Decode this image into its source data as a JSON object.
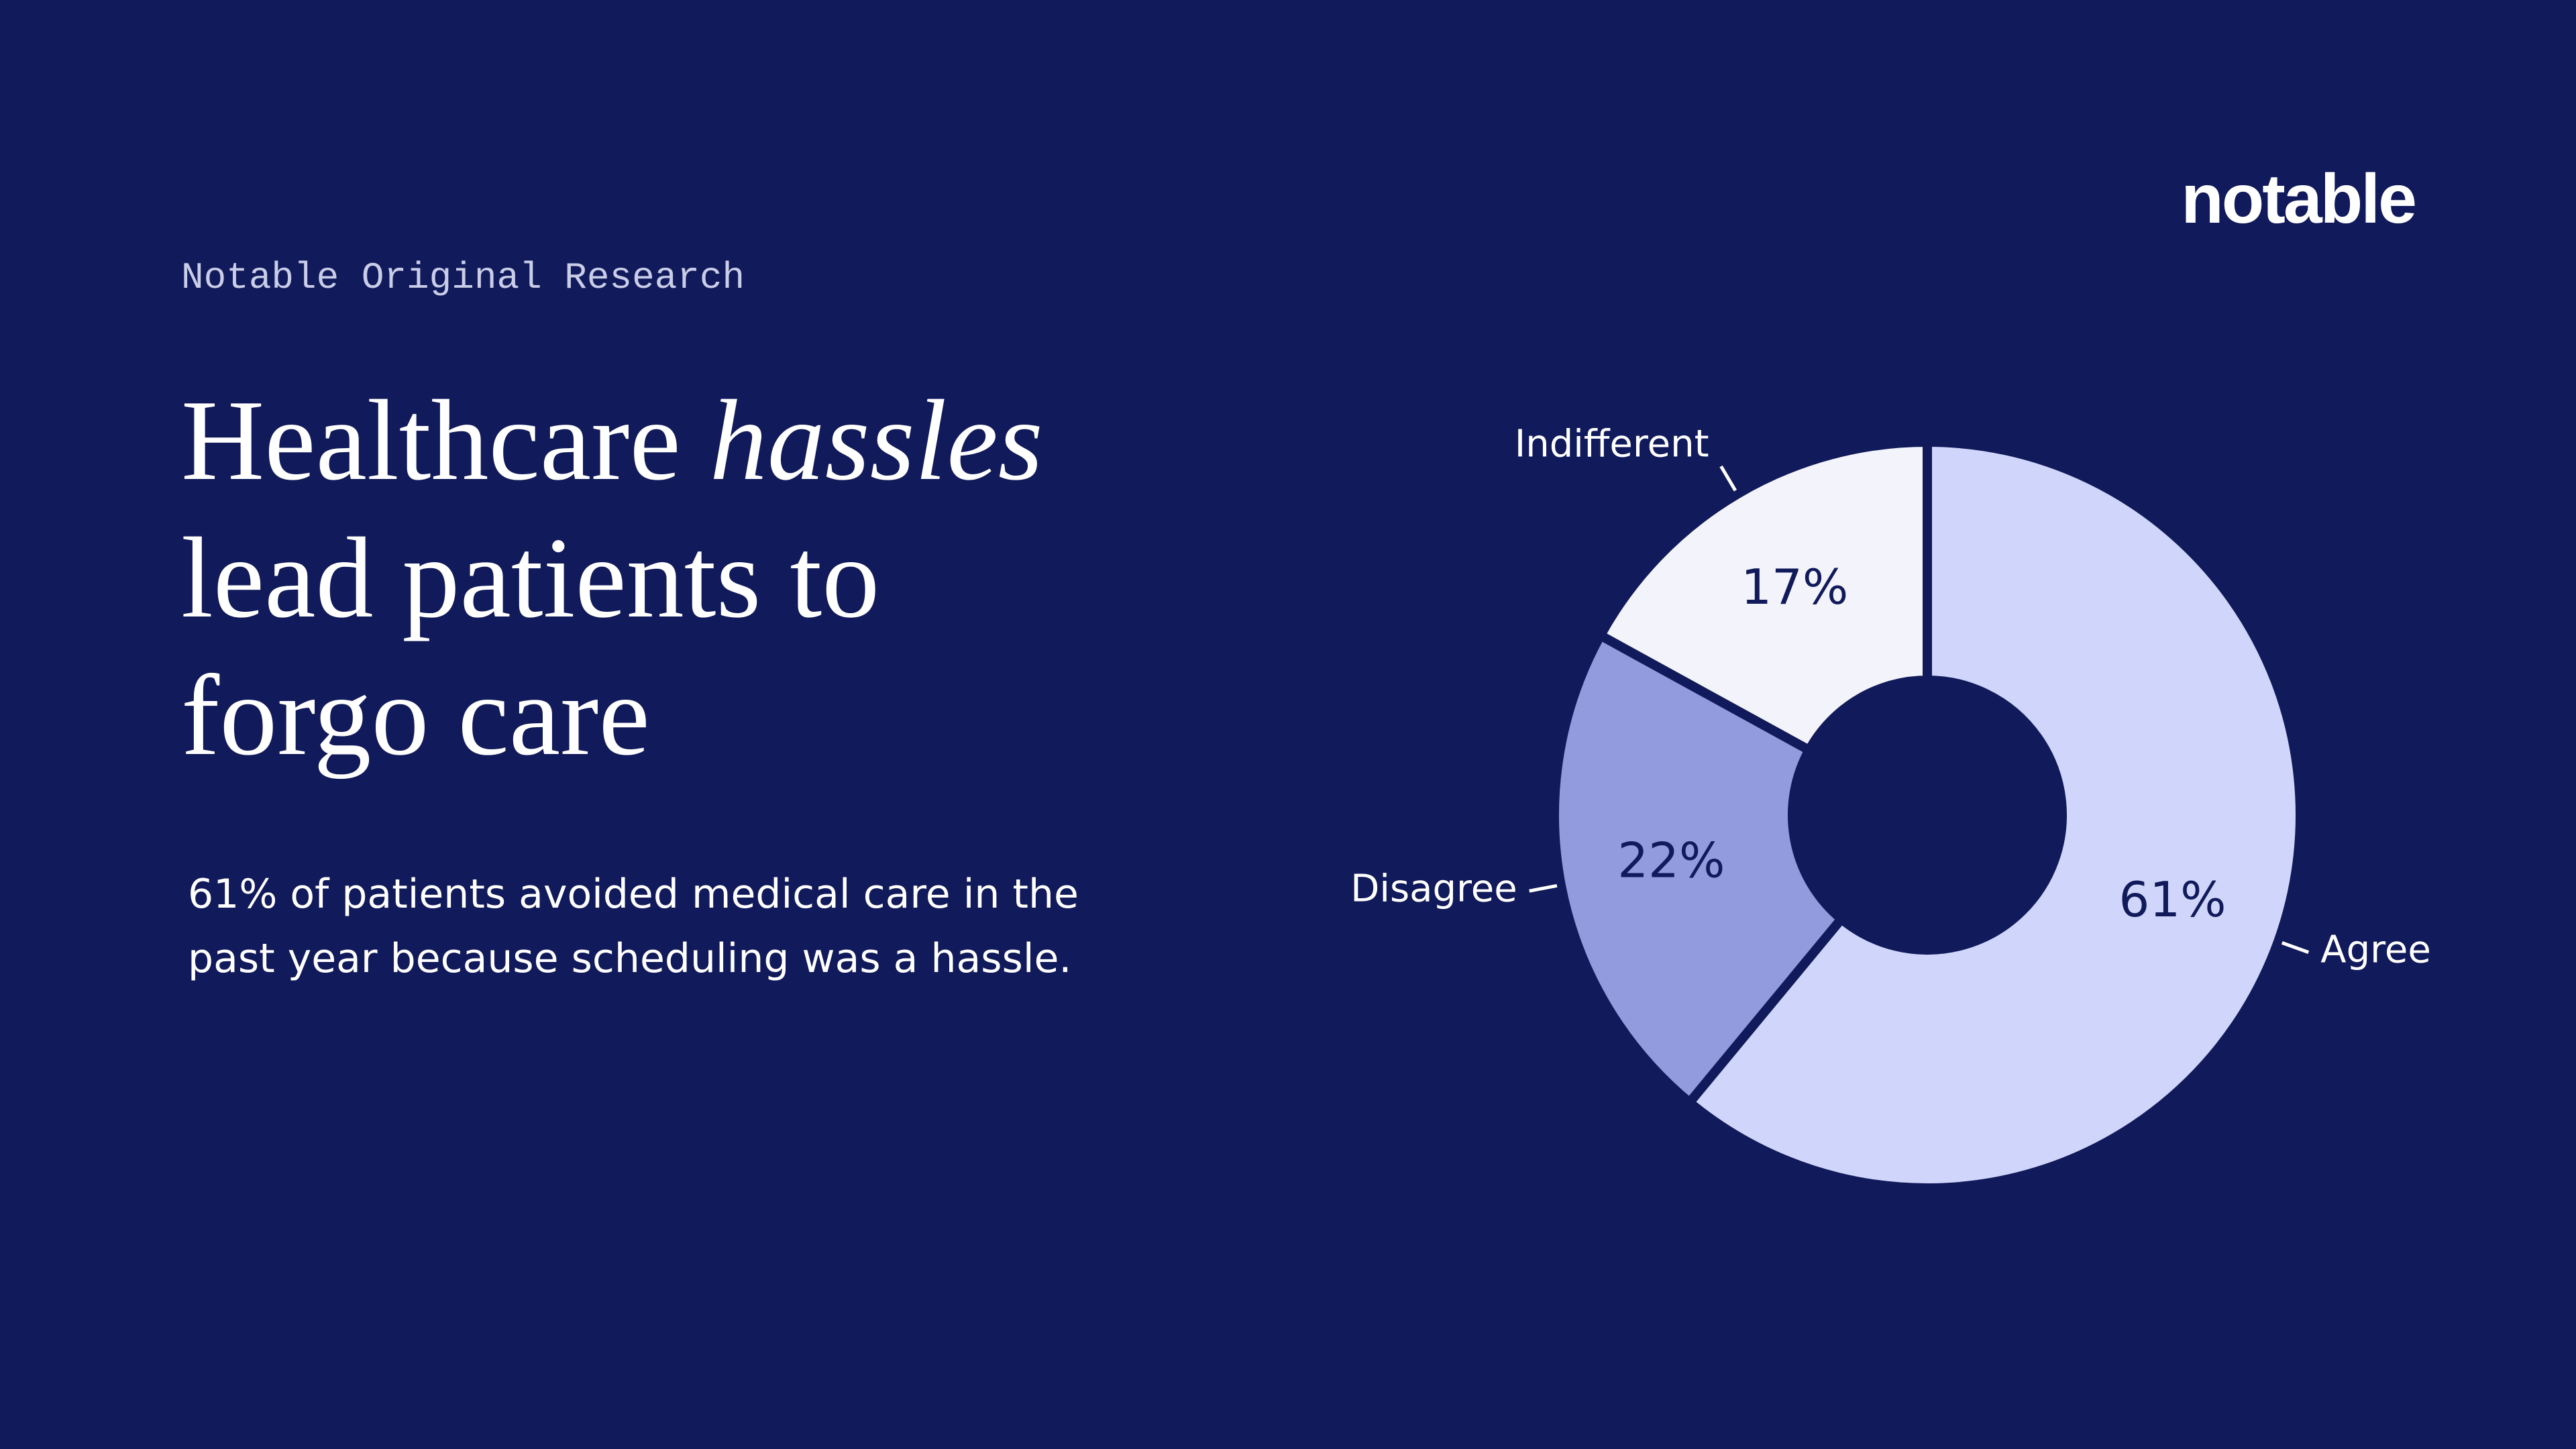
{
  "brand": "notable",
  "eyebrow": "Notable Original Research",
  "chart_data": {
    "type": "donut",
    "title": [
      "Healthcare",
      "hassles",
      "lead patients to",
      "forgo care"
    ],
    "subtitle": "61% of patients avoided medical care in the past year because scheduling was a hassle.",
    "categories": [
      "Agree",
      "Disagree",
      "Indifferent"
    ],
    "values": [
      61,
      22,
      17
    ],
    "value_labels": [
      "61%",
      "22%",
      "17%"
    ],
    "colors": [
      "#d0d6fb",
      "#919bdd",
      "#f3f4fb"
    ]
  }
}
